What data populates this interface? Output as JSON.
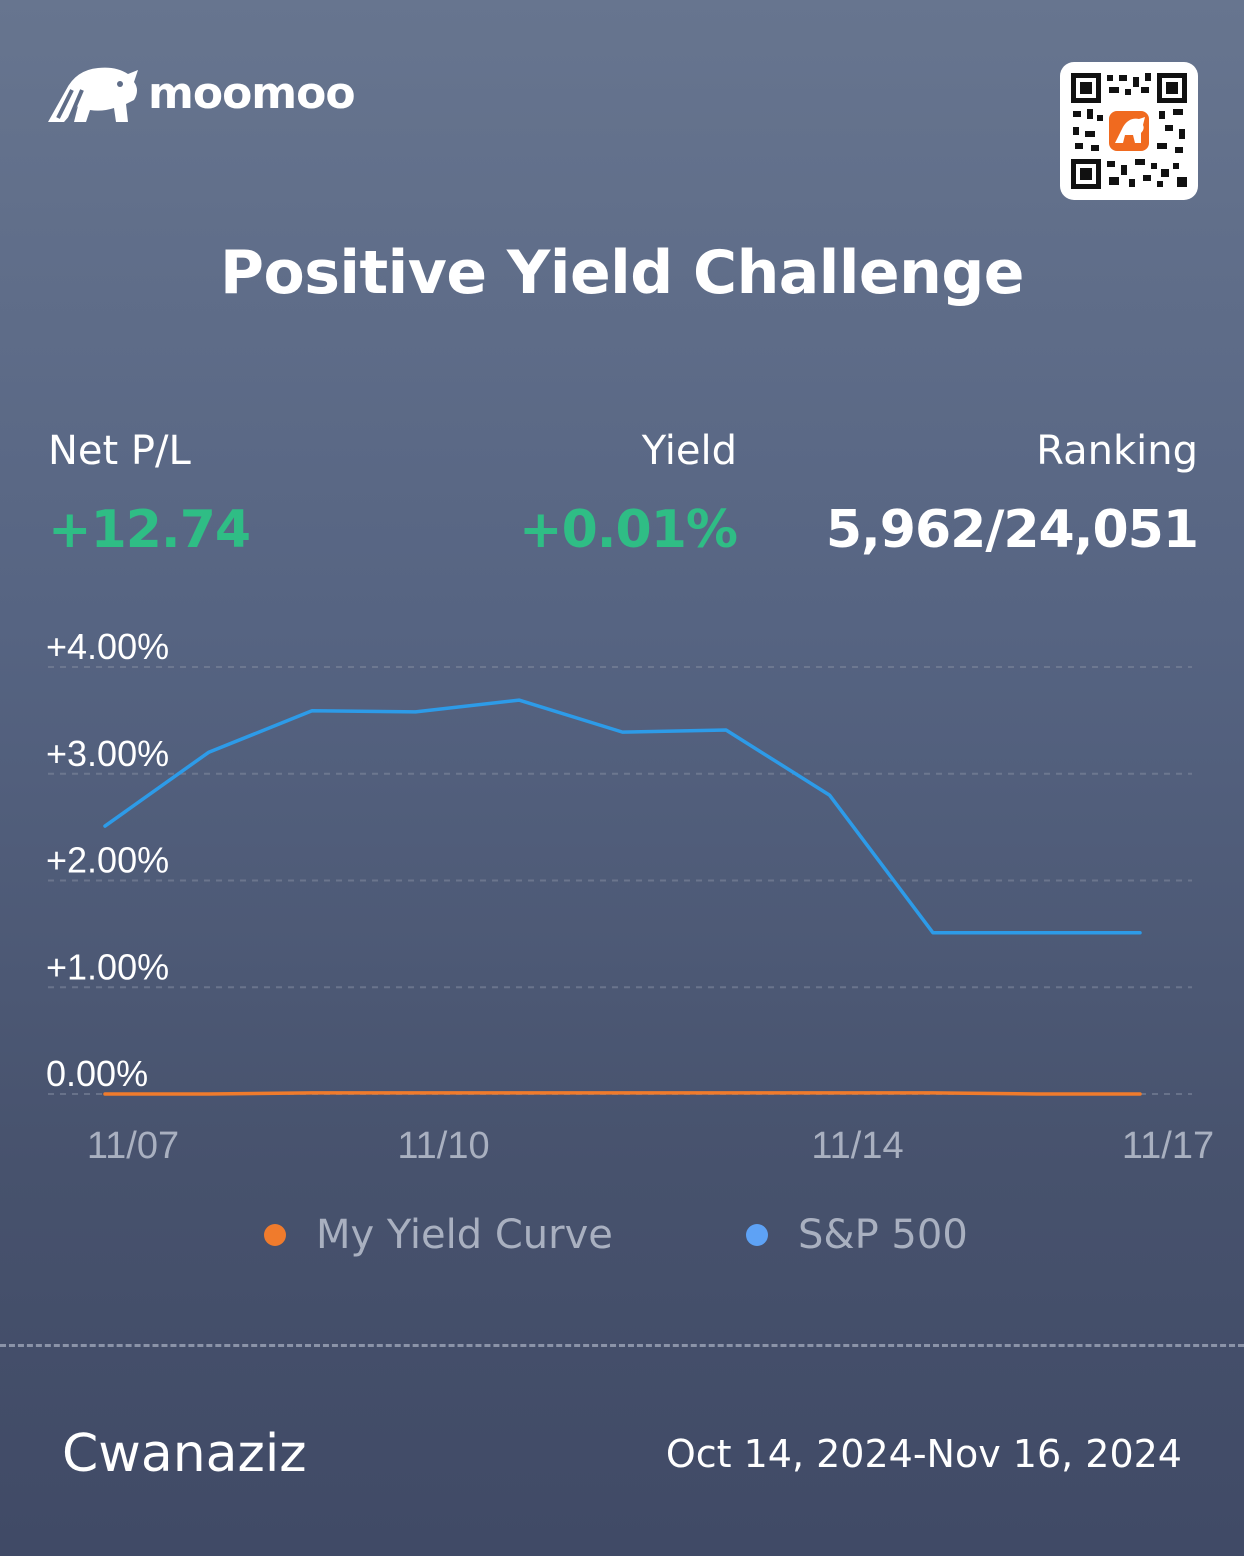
{
  "brand": {
    "logo_text": "moomoo",
    "icon": "bull-head-icon"
  },
  "qr_code": {
    "icon": "qr-code-icon"
  },
  "title": "Positive Yield Challenge",
  "stats": {
    "net_pl": {
      "label": "Net P/L",
      "value": "+12.74"
    },
    "yield": {
      "label": "Yield",
      "value": "+0.01%"
    },
    "ranking": {
      "label": "Ranking",
      "value": "5,962/24,051"
    }
  },
  "colors": {
    "positive": "#2fbd85",
    "my_yield_curve": "#f07b2c",
    "sp500": "#2d9be8",
    "legend_sp500_dot": "#5ea2f5"
  },
  "chart_data": {
    "type": "line",
    "x": [
      "11/07",
      "11/08",
      "11/09",
      "11/10",
      "11/11",
      "11/12",
      "11/13",
      "11/14",
      "11/15",
      "11/16",
      "11/17"
    ],
    "x_tick_labels": [
      "11/07",
      "11/10",
      "11/14",
      "11/17"
    ],
    "y_tick_labels": [
      "+4.00%",
      "+3.00%",
      "+2.00%",
      "+1.00%",
      "0.00%"
    ],
    "ylim": [
      0,
      4
    ],
    "grid": true,
    "legend_position": "bottom",
    "series": [
      {
        "name": "My Yield Curve",
        "values": [
          0.0,
          0.0,
          0.01,
          0.01,
          0.01,
          0.01,
          0.01,
          0.01,
          0.01,
          0.0,
          0.0
        ]
      },
      {
        "name": "S&P 500",
        "values": [
          2.51,
          3.2,
          3.59,
          3.58,
          3.69,
          3.39,
          3.41,
          2.8,
          1.51,
          1.51,
          1.51
        ]
      }
    ]
  },
  "footer": {
    "username": "Cwanaziz",
    "date_range": "Oct 14, 2024-Nov 16, 2024"
  }
}
